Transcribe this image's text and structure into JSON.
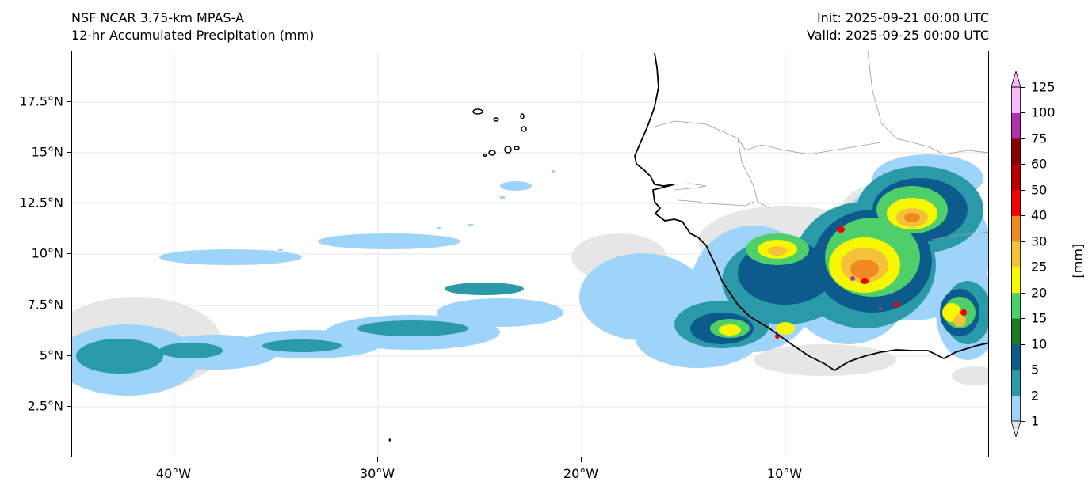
{
  "header": {
    "model": "NSF NCAR 3.75-km MPAS-A",
    "product": "12-hr Accumulated Precipitation (mm)",
    "init": "Init: 2025-09-21 00:00 UTC",
    "valid": "Valid: 2025-09-25 00:00 UTC"
  },
  "map": {
    "lat_labels": [
      "17.5°N",
      "15°N",
      "12.5°N",
      "10°N",
      "7.5°N",
      "5°N",
      "2.5°N"
    ],
    "lon_labels": [
      "40°W",
      "30°W",
      "20°W",
      "10°W"
    ],
    "colors": {
      "coast": "#000000",
      "border": "#9a9a9a",
      "grid": "#e6e6e6"
    }
  },
  "colorbar": {
    "unit": "[mm]",
    "levels": [
      "1",
      "2",
      "5",
      "10",
      "15",
      "20",
      "25",
      "30",
      "40",
      "50",
      "60",
      "75",
      "100",
      "125"
    ],
    "colors": [
      "#e6e6e6",
      "#9ed3fa",
      "#2b9aa8",
      "#0d5a8c",
      "#1e7a24",
      "#4fcf6a",
      "#f7f700",
      "#f4c23a",
      "#f08a20",
      "#f00000",
      "#b80000",
      "#8b0000",
      "#b030b0",
      "#f6b8f6"
    ]
  }
}
